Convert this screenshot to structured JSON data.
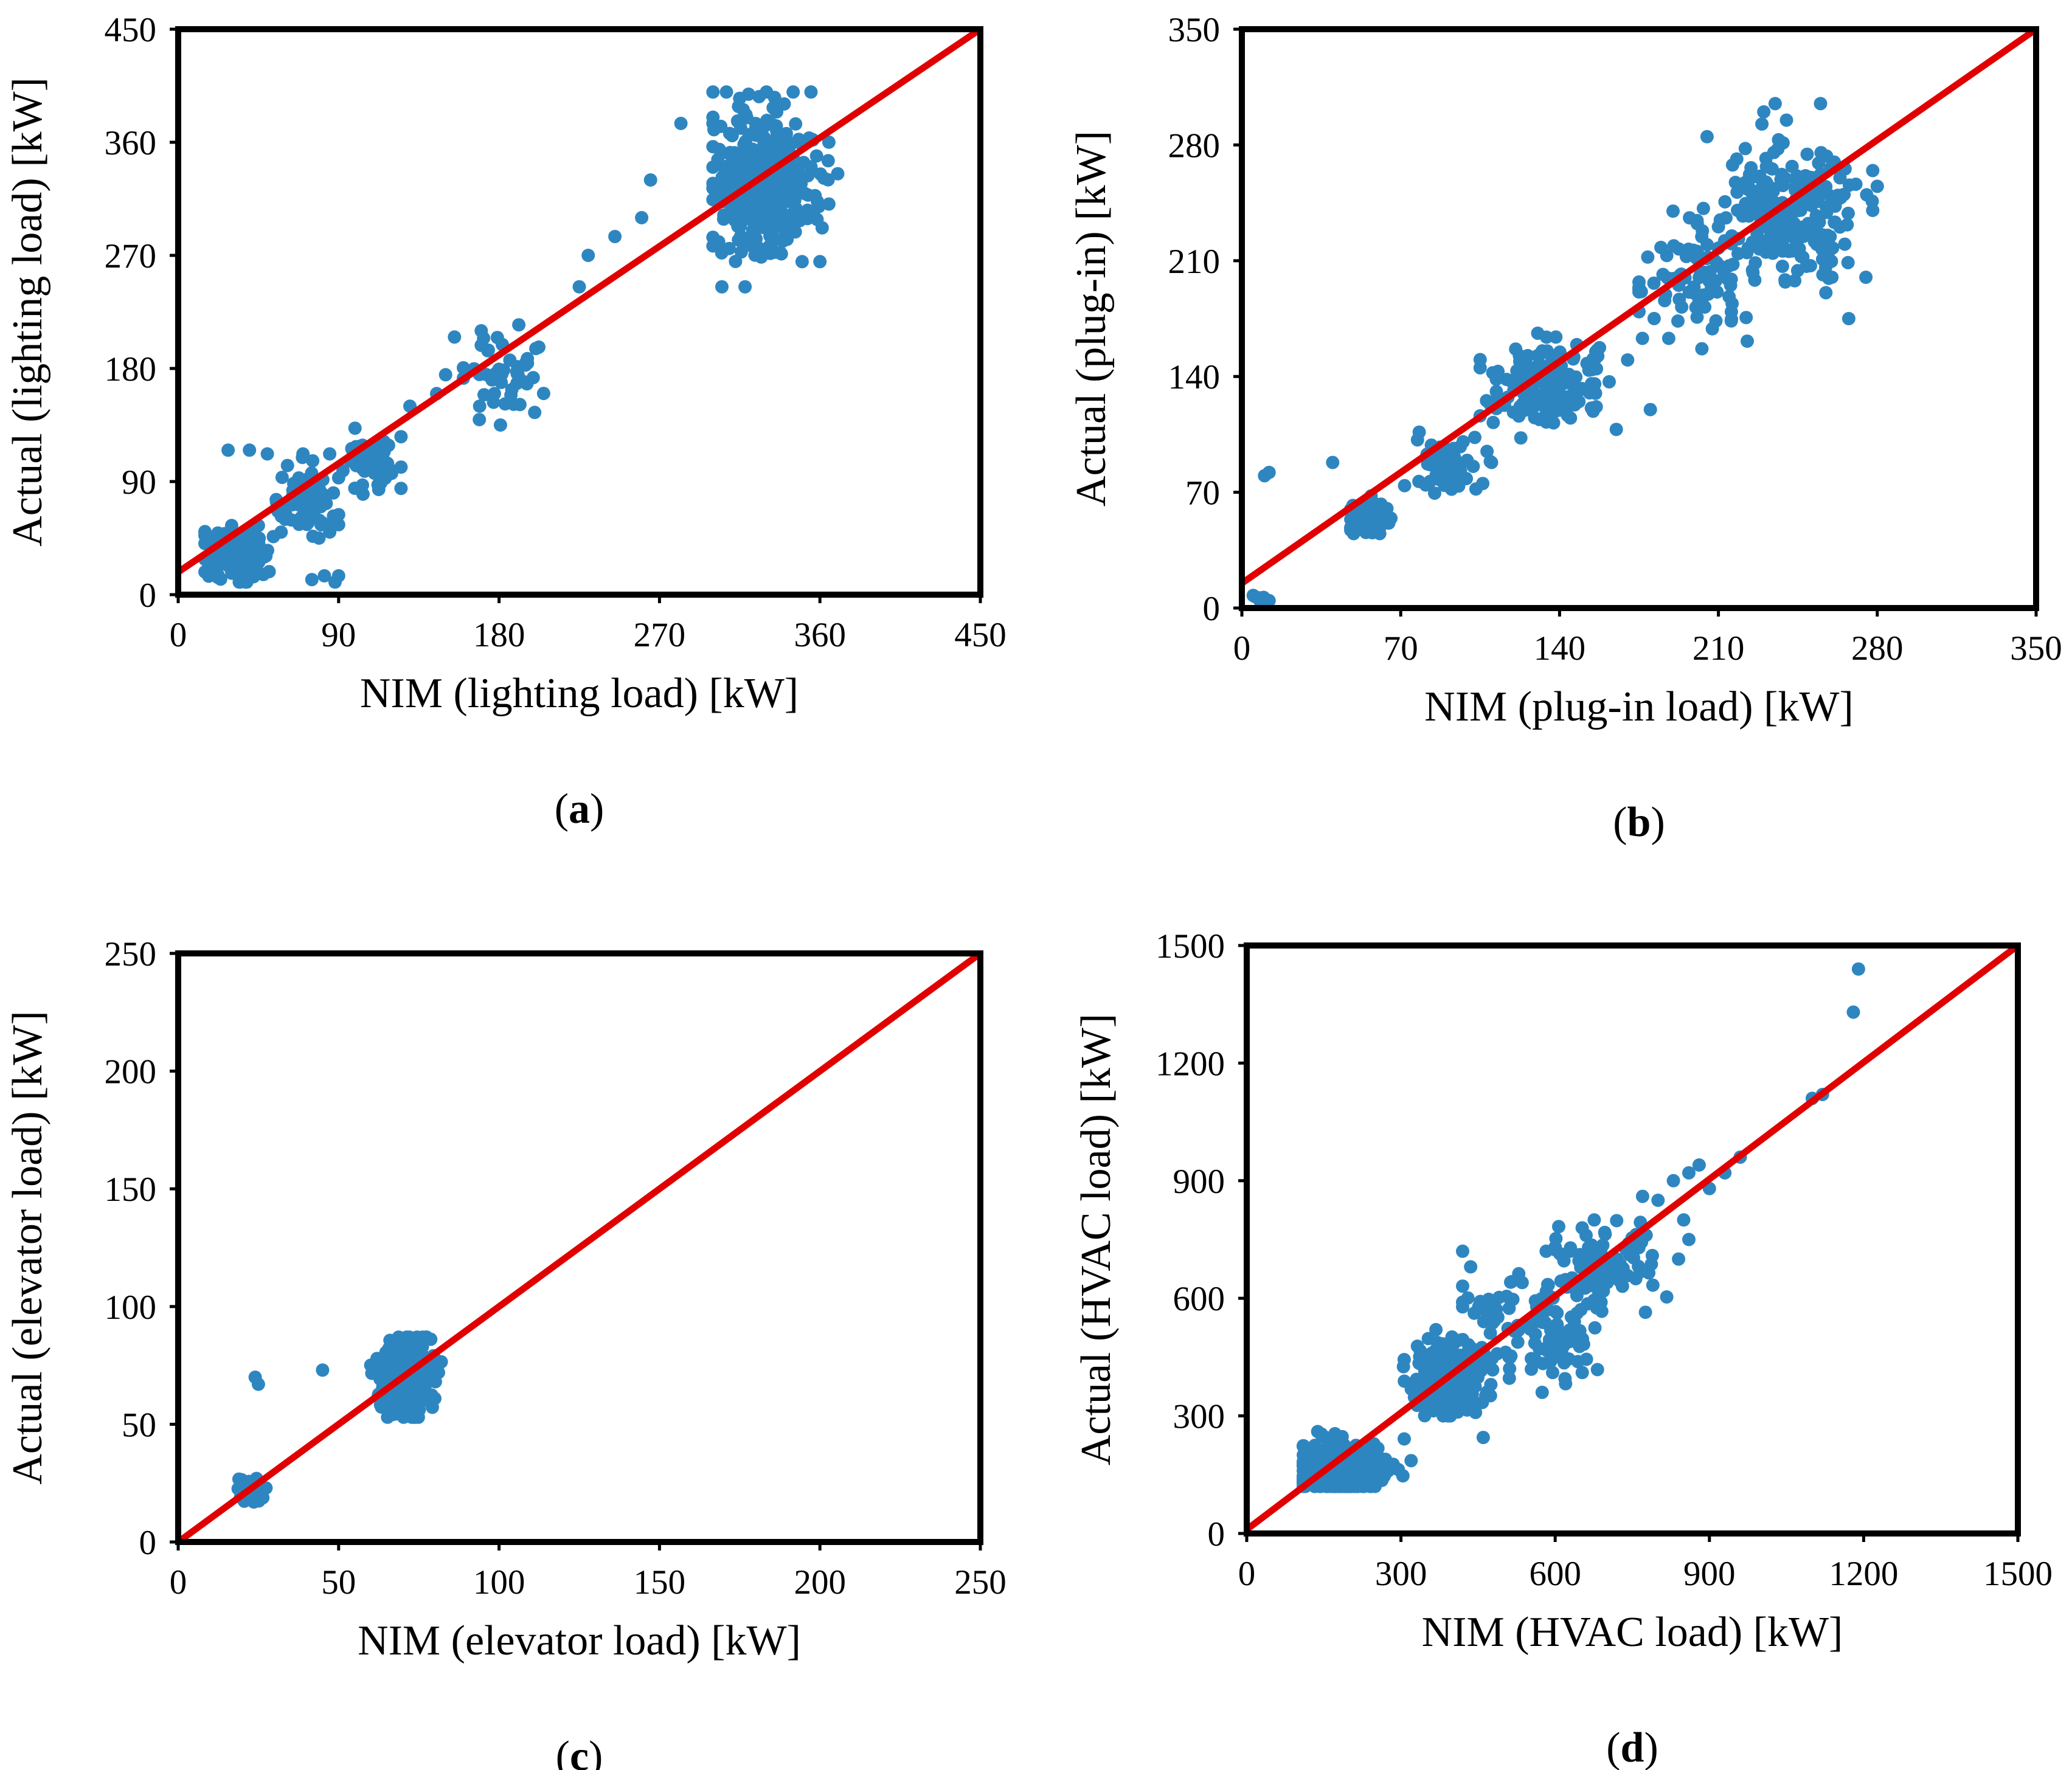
{
  "colors": {
    "points": "#2e86c1",
    "fit_line": "#e00000",
    "frame": "#000000"
  },
  "chart_data": [
    {
      "type": "scatter",
      "panel_label": "a",
      "xlabel": "NIM (lighting load) [kW]",
      "ylabel": "Actual (lighting load) [kW]",
      "xlim": [
        0,
        450
      ],
      "ylim": [
        0,
        450
      ],
      "xticks": [
        0,
        90,
        180,
        270,
        360,
        450
      ],
      "yticks": [
        0,
        90,
        180,
        270,
        360,
        450
      ],
      "xtick_labels": [
        "0",
        "90",
        "180",
        "270",
        "360",
        "450"
      ],
      "ytick_labels": [
        "0",
        "90",
        "180",
        "270",
        "360",
        "450"
      ],
      "fit_line": [
        [
          0,
          18
        ],
        [
          450,
          450
        ]
      ],
      "clusters": [
        {
          "cx": 30,
          "cy": 30,
          "sx": 9,
          "sy": 12,
          "n": 110,
          "x_range": [
            15,
            55
          ],
          "y_range": [
            10,
            60
          ]
        },
        {
          "cx": 72,
          "cy": 72,
          "sx": 10,
          "sy": 12,
          "n": 70,
          "x_range": [
            55,
            90
          ],
          "y_range": [
            45,
            115
          ]
        },
        {
          "cx": 110,
          "cy": 107,
          "sx": 8,
          "sy": 10,
          "n": 70,
          "x_range": [
            90,
            125
          ],
          "y_range": [
            80,
            135
          ]
        },
        {
          "cx": 180,
          "cy": 180,
          "sx": 12,
          "sy": 18,
          "n": 50,
          "x_range": [
            160,
            205
          ],
          "y_range": [
            135,
            225
          ]
        },
        {
          "cx": 330,
          "cy": 325,
          "sx": 14,
          "sy": 26,
          "n": 420,
          "x_range": [
            300,
            365
          ],
          "y_range": [
            245,
            400
          ]
        }
      ],
      "points": [
        [
          40,
          115
        ],
        [
          28,
          115
        ],
        [
          50,
          112
        ],
        [
          70,
          112
        ],
        [
          85,
          112
        ],
        [
          30,
          55
        ],
        [
          45,
          55
        ],
        [
          60,
          60
        ],
        [
          82,
          15
        ],
        [
          90,
          15
        ],
        [
          88,
          10
        ],
        [
          75,
          12
        ],
        [
          130,
          150
        ],
        [
          145,
          160
        ],
        [
          155,
          205
        ],
        [
          150,
          175
        ],
        [
          170,
          210
        ],
        [
          200,
          145
        ],
        [
          225,
          245
        ],
        [
          230,
          270
        ],
        [
          245,
          285
        ],
        [
          260,
          300
        ],
        [
          265,
          330
        ],
        [
          282,
          375
        ],
        [
          300,
          375
        ],
        [
          315,
          395
        ],
        [
          330,
          400
        ],
        [
          345,
          400
        ],
        [
          355,
          400
        ],
        [
          370,
          335
        ],
        [
          305,
          245
        ],
        [
          318,
          245
        ],
        [
          350,
          265
        ],
        [
          360,
          265
        ]
      ]
    },
    {
      "type": "scatter",
      "panel_label": "b",
      "xlabel": "NIM (plug-in load) [kW]",
      "ylabel": "Actual (plug-in) [kW]",
      "xlim": [
        0,
        350
      ],
      "ylim": [
        0,
        350
      ],
      "xticks": [
        0,
        70,
        140,
        210,
        280,
        350
      ],
      "yticks": [
        0,
        70,
        140,
        210,
        280,
        350
      ],
      "xtick_labels": [
        "0",
        "70",
        "140",
        "210",
        "280",
        "350"
      ],
      "ytick_labels": [
        "0",
        "70",
        "140",
        "210",
        "280",
        "350"
      ],
      "fit_line": [
        [
          0,
          15
        ],
        [
          350,
          350
        ]
      ],
      "clusters": [
        {
          "cx": 8,
          "cy": 5,
          "sx": 2,
          "sy": 2,
          "n": 12,
          "x_range": [
            5,
            12
          ],
          "y_range": [
            3,
            8
          ]
        },
        {
          "cx": 55,
          "cy": 55,
          "sx": 5,
          "sy": 5,
          "n": 80,
          "x_range": [
            48,
            70
          ],
          "y_range": [
            45,
            68
          ]
        },
        {
          "cx": 90,
          "cy": 85,
          "sx": 8,
          "sy": 10,
          "n": 60,
          "x_range": [
            70,
            110
          ],
          "y_range": [
            60,
            110
          ]
        },
        {
          "cx": 135,
          "cy": 135,
          "sx": 12,
          "sy": 12,
          "n": 160,
          "x_range": [
            105,
            165
          ],
          "y_range": [
            100,
            170
          ]
        },
        {
          "cx": 200,
          "cy": 200,
          "sx": 12,
          "sy": 16,
          "n": 90,
          "x_range": [
            175,
            225
          ],
          "y_range": [
            155,
            245
          ]
        },
        {
          "cx": 240,
          "cy": 240,
          "sx": 14,
          "sy": 20,
          "n": 240,
          "x_range": [
            210,
            278
          ],
          "y_range": [
            175,
            305
          ]
        }
      ],
      "points": [
        [
          10,
          80
        ],
        [
          12,
          82
        ],
        [
          40,
          88
        ],
        [
          180,
          120
        ],
        [
          165,
          108
        ],
        [
          170,
          150
        ],
        [
          190,
          240
        ],
        [
          205,
          285
        ],
        [
          235,
          305
        ],
        [
          255,
          305
        ],
        [
          280,
          255
        ],
        [
          275,
          200
        ],
        [
          260,
          200
        ],
        [
          230,
          300
        ],
        [
          240,
          295
        ]
      ]
    },
    {
      "type": "scatter",
      "panel_label": "c",
      "xlabel": "NIM (elevator load) [kW]",
      "ylabel": "Actual (elevator load) [kW]",
      "xlim": [
        0,
        250
      ],
      "ylim": [
        0,
        250
      ],
      "xticks": [
        0,
        50,
        100,
        150,
        200,
        250
      ],
      "yticks": [
        0,
        50,
        100,
        150,
        200,
        250
      ],
      "xtick_labels": [
        "0",
        "50",
        "100",
        "150",
        "200",
        "250"
      ],
      "ytick_labels": [
        "0",
        "50",
        "100",
        "150",
        "200",
        "250"
      ],
      "fit_line": [
        [
          0,
          0
        ],
        [
          250,
          250
        ]
      ],
      "clusters": [
        {
          "cx": 23,
          "cy": 22,
          "sx": 2,
          "sy": 2.5,
          "n": 70,
          "x_range": [
            18,
            30
          ],
          "y_range": [
            17,
            27
          ]
        },
        {
          "cx": 71,
          "cy": 71,
          "sx": 4,
          "sy": 8,
          "n": 420,
          "x_range": [
            60,
            82
          ],
          "y_range": [
            53,
            87
          ]
        }
      ],
      "points": [
        [
          24,
          70
        ],
        [
          25,
          67
        ],
        [
          45,
          73
        ]
      ]
    },
    {
      "type": "scatter",
      "panel_label": "d",
      "xlabel": "NIM (HVAC load) [kW]",
      "ylabel": "Actual (HVAC load) [kW]",
      "xlim": [
        0,
        1500
      ],
      "ylim": [
        0,
        1500
      ],
      "xticks": [
        0,
        300,
        600,
        900,
        1200,
        1500
      ],
      "yticks": [
        0,
        300,
        600,
        900,
        1200,
        1500
      ],
      "xtick_labels": [
        "0",
        "300",
        "600",
        "900",
        "1200",
        "1500"
      ],
      "ytick_labels": [
        "0",
        "300",
        "600",
        "900",
        "1200",
        "1500"
      ],
      "fit_line": [
        [
          0,
          10
        ],
        [
          1500,
          1500
        ]
      ],
      "clusters": [
        {
          "cx": 180,
          "cy": 170,
          "sx": 40,
          "sy": 35,
          "n": 380,
          "x_range": [
            110,
            330
          ],
          "y_range": [
            120,
            260
          ]
        },
        {
          "cx": 390,
          "cy": 400,
          "sx": 35,
          "sy": 45,
          "n": 260,
          "x_range": [
            300,
            500
          ],
          "y_range": [
            300,
            520
          ]
        },
        {
          "cx": 560,
          "cy": 540,
          "sx": 70,
          "sy": 80,
          "n": 130,
          "x_range": [
            420,
            720
          ],
          "y_range": [
            360,
            720
          ]
        },
        {
          "cx": 700,
          "cy": 680,
          "sx": 50,
          "sy": 60,
          "n": 90,
          "x_range": [
            600,
            830
          ],
          "y_range": [
            560,
            800
          ]
        }
      ],
      "points": [
        [
          800,
          850
        ],
        [
          830,
          900
        ],
        [
          860,
          920
        ],
        [
          880,
          940
        ],
        [
          900,
          880
        ],
        [
          930,
          920
        ],
        [
          960,
          960
        ],
        [
          1100,
          1110
        ],
        [
          1120,
          1120
        ],
        [
          1180,
          1330
        ],
        [
          1190,
          1440
        ],
        [
          840,
          700
        ],
        [
          860,
          750
        ],
        [
          460,
          245
        ],
        [
          420,
          590
        ],
        [
          850,
          800
        ],
        [
          770,
          860
        ]
      ]
    }
  ]
}
